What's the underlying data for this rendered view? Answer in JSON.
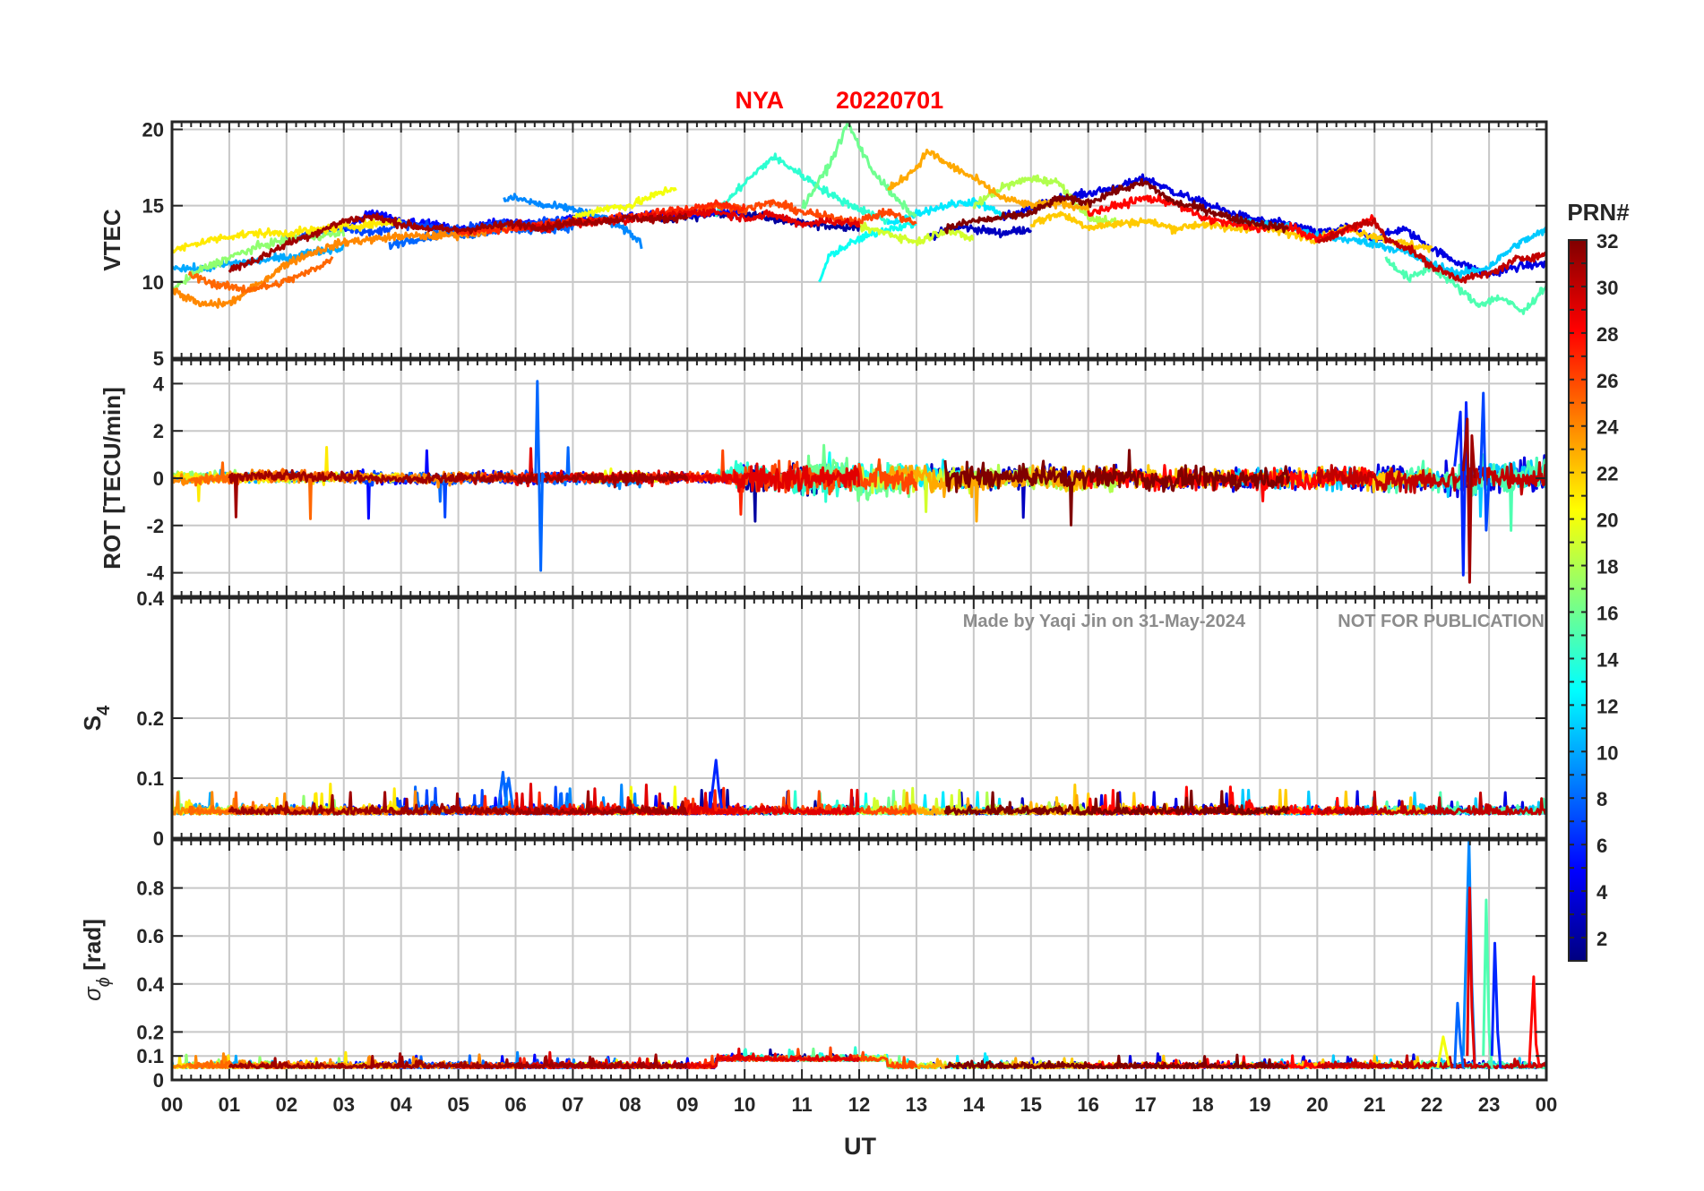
{
  "chart_data": {
    "type": "line",
    "title_station": "NYA",
    "title_date": "20220701",
    "xlabel": "UT",
    "xlim": [
      0,
      24
    ],
    "x_ticks": [
      "00",
      "01",
      "02",
      "03",
      "04",
      "05",
      "06",
      "07",
      "08",
      "09",
      "10",
      "11",
      "12",
      "13",
      "14",
      "15",
      "16",
      "17",
      "18",
      "19",
      "20",
      "21",
      "22",
      "23",
      "00"
    ],
    "watermark_author": "Made by Yaqi Jin on 31-May-2024",
    "watermark_notice": "NOT FOR PUBLICATION",
    "colorbar": {
      "title": "PRN#",
      "colormap": "jet",
      "range": [
        1,
        32
      ],
      "ticks": [
        "2",
        "4",
        "6",
        "8",
        "10",
        "12",
        "14",
        "16",
        "18",
        "20",
        "22",
        "24",
        "26",
        "28",
        "30",
        "32"
      ]
    },
    "panels": [
      {
        "id": "vtec",
        "ylabel": "VTEC",
        "ylim": [
          5,
          20.5
        ],
        "yticks": [
          5,
          10,
          15,
          20
        ],
        "ytick_labels": [
          "5",
          "10",
          "15",
          "20"
        ],
        "series_summary": "VTEC ~8-13 TECU at 00-03 UT, rising to ~13-15 by 06-09 UT, peaks near 18.5-20 around 10.5-12 UT, ~13-17 at 13-19 UT, falling to ~8-12 at 21-24 UT"
      },
      {
        "id": "rot",
        "ylabel": "ROT [TECU/min]",
        "ylim": [
          -5,
          5
        ],
        "yticks": [
          -4,
          -2,
          0,
          2,
          4
        ],
        "ytick_labels": [
          "-4",
          "-2",
          "0",
          "2",
          "4"
        ],
        "series_summary": "ROT mostly within ±1 TECU/min; spike to +4.1/-3.9 at ~06.4 UT; bursts to ±2 at 10-14 UT; spikes to +3.6/-4.4 at ~22.6 UT"
      },
      {
        "id": "s4",
        "ylabel": "S4",
        "ylabel_main": "S",
        "ylabel_sub": "4",
        "ylim": [
          0,
          0.4
        ],
        "yticks": [
          0,
          0.1,
          0.2,
          0.4
        ],
        "ytick_labels": [
          "0",
          "0.1",
          "0.2",
          "0.4"
        ],
        "series_summary": "S4 mostly 0.02-0.09; small peaks ~0.13 at ~9.5 UT and ~0.11 at ~5.8 UT"
      },
      {
        "id": "sigphi",
        "ylabel": "sigma_phi [rad]",
        "ylabel_sigma": "σ",
        "ylabel_sub": "ϕ",
        "ylabel_unit": "[rad]",
        "ylim": [
          0,
          1
        ],
        "yticks": [
          0,
          0.1,
          0.2,
          0.4,
          0.6,
          0.8
        ],
        "ytick_labels": [
          "0",
          "0.1",
          "0.2",
          "0.4",
          "0.6",
          "0.8"
        ],
        "series_summary": "sigma_phi mostly 0.03-0.15; spikes to ~1.0, 0.8, 0.75, 0.57 at ~22.5-23 UT and ~0.43 at ~23.8 UT"
      }
    ],
    "anchors": [
      {
        "panel": "vtec",
        "series": [
          {
            "prn": 2,
            "x": [
              8.5,
              9,
              10,
              11,
              12
            ],
            "y": [
              14,
              14.3,
              14.5,
              13.8,
              13.6
            ]
          },
          {
            "prn": 3,
            "x": [
              13.2,
              13.8,
              14.5,
              15
            ],
            "y": [
              13,
              13.6,
              13.2,
              13.5
            ]
          },
          {
            "prn": 4,
            "x": [
              14.5,
              15,
              15.5,
              16,
              16.5,
              17,
              17.5,
              18,
              18.5,
              19,
              19.5,
              20,
              20.5,
              21,
              21.5,
              22,
              22.5,
              23,
              23.5,
              24
            ],
            "y": [
              14.2,
              14.8,
              15.5,
              15.8,
              16.2,
              16.8,
              15.9,
              15.2,
              14.5,
              14,
              13.8,
              13.2,
              13.6,
              12.8,
              13.5,
              12.2,
              11.2,
              10.5,
              11,
              11.2
            ]
          },
          {
            "prn": 5,
            "x": [
              3,
              3.5,
              4,
              4.5,
              5,
              5.5,
              6,
              6.5,
              7,
              7.5,
              8,
              8.5,
              9,
              9.5,
              10
            ],
            "y": [
              13.4,
              14.6,
              14,
              13.8,
              13.4,
              13.8,
              14,
              13.8,
              14.2,
              14.1,
              14.3,
              14.5,
              14.4,
              14.6,
              14.6
            ]
          },
          {
            "prn": 7,
            "x": [
              2,
              2.5,
              3,
              3.5,
              4,
              4.5,
              5,
              5.5,
              6,
              6.5,
              7
            ],
            "y": [
              12.8,
              13.2,
              13.6,
              13.2,
              13.8,
              13.6,
              13.4,
              13.8,
              13.8,
              14,
              14
            ]
          },
          {
            "prn": 8,
            "x": [
              3.8,
              4.2,
              4.8,
              5.2,
              5.8,
              6.2,
              7
            ],
            "y": [
              12.4,
              12.8,
              13.2,
              13.1,
              13.5,
              13.4,
              13.6
            ]
          },
          {
            "prn": 9,
            "x": [
              5.8,
              6,
              6.5,
              7,
              7.5,
              8,
              8.2
            ],
            "y": [
              15.4,
              15.5,
              15,
              14.8,
              14.2,
              13.2,
              12.5
            ]
          },
          {
            "prn": 10,
            "x": [
              0,
              0.5,
              1,
              1.5,
              2,
              2.5,
              3
            ],
            "y": [
              11,
              10.8,
              11.2,
              11.4,
              11.6,
              12,
              12.2
            ]
          },
          {
            "prn": 11,
            "x": [
              18.5,
              19,
              19.5,
              20,
              20.5,
              21,
              21.5,
              22,
              22.5,
              23,
              23.5,
              24
            ],
            "y": [
              14,
              13.8,
              13.6,
              13,
              12.8,
              12.5,
              12,
              11.2,
              10.5,
              11,
              12.5,
              13.4
            ]
          },
          {
            "prn": 12,
            "x": [
              12.5,
              13,
              13.5,
              14,
              14.5
            ],
            "y": [
              13.8,
              14.5,
              15,
              15.3,
              14.4
            ]
          },
          {
            "prn": 13,
            "x": [
              11.3,
              11.5,
              12,
              12.5,
              13
            ],
            "y": [
              10,
              11.8,
              12.8,
              13.5,
              13.8
            ]
          },
          {
            "prn": 14,
            "x": [
              9.5,
              10,
              10.5,
              10.8,
              11.2,
              11.6,
              12,
              12.5
            ],
            "y": [
              14.5,
              16.5,
              18.2,
              17.5,
              16.5,
              15.5,
              14.8,
              14
            ]
          },
          {
            "prn": 15,
            "x": [
              21.2,
              21.6,
              22,
              22.4,
              22.8,
              23.2,
              23.6,
              24
            ],
            "y": [
              11.5,
              10.2,
              11,
              9.8,
              8.5,
              9,
              8,
              9.8
            ]
          },
          {
            "prn": 16,
            "x": [
              11,
              11.5,
              11.8,
              12.2,
              12.6,
              13
            ],
            "y": [
              14.8,
              17.8,
              20.4,
              17.5,
              15.6,
              14.2
            ]
          },
          {
            "prn": 17,
            "x": [
              0,
              0.5,
              1,
              1.5,
              2,
              2.5,
              3
            ],
            "y": [
              9.5,
              10.8,
              11.6,
              12.3,
              12.8,
              13,
              13.2
            ]
          },
          {
            "prn": 18,
            "x": [
              14,
              14.5,
              15,
              15.5,
              16,
              16.5
            ],
            "y": [
              15,
              16.2,
              16.8,
              16.5,
              14.2,
              13.8
            ]
          },
          {
            "prn": 19,
            "x": [
              12,
              12.5,
              13,
              13.5,
              14
            ],
            "y": [
              13.6,
              13.2,
              12.6,
              13.4,
              12.8
            ]
          },
          {
            "prn": 20,
            "x": [
              7,
              7.5,
              8,
              8.5,
              8.8
            ],
            "y": [
              14.2,
              14.8,
              15,
              15.8,
              16.2
            ]
          },
          {
            "prn": 21,
            "x": [
              0,
              0.5,
              1,
              1.5,
              2,
              2.5,
              3,
              3.5,
              4
            ],
            "y": [
              12,
              12.6,
              13,
              13.2,
              13.2,
              13.4,
              13.6,
              13.8,
              14
            ]
          },
          {
            "prn": 22,
            "x": [
              15,
              15.5,
              16,
              16.5,
              17,
              17.5,
              18,
              18.5,
              19,
              19.5,
              20,
              20.5,
              21,
              21.5,
              22
            ],
            "y": [
              13.8,
              14.5,
              13.6,
              13.8,
              14,
              13.5,
              13.8,
              13.5,
              13.6,
              13.2,
              12.8,
              13.5,
              13,
              12.5,
              12.2
            ]
          },
          {
            "prn": 23,
            "x": [
              12.5,
              13,
              13.2,
              13.5,
              14,
              14.5,
              15,
              15.5,
              16
            ],
            "y": [
              16,
              17.5,
              18.6,
              17.8,
              16.8,
              15.5,
              15,
              15.2,
              14.8
            ]
          },
          {
            "prn": 24,
            "x": [
              0,
              0.5,
              1,
              1.5,
              2,
              2.5,
              3,
              3.5,
              4,
              4.5,
              5,
              5.5,
              6
            ],
            "y": [
              9.5,
              8.5,
              8.6,
              9.8,
              11.2,
              12,
              12.6,
              12.8,
              13,
              13,
              13.1,
              13.3,
              13.6
            ]
          },
          {
            "prn": 25,
            "x": [
              0.3,
              0.8,
              1.3,
              1.8,
              2.3,
              2.8
            ],
            "y": [
              10.5,
              9.8,
              9.5,
              9.8,
              10.5,
              11.5
            ]
          },
          {
            "prn": 26,
            "x": [
              9,
              9.5,
              10,
              10.5,
              11,
              11.5,
              12,
              12.5,
              13
            ],
            "y": [
              14.5,
              15,
              14.8,
              15.2,
              14.6,
              14.2,
              14,
              14.6,
              13.8
            ]
          },
          {
            "prn": 27,
            "x": [
              5,
              5.5,
              6,
              6.5,
              7,
              7.5,
              8,
              8.5,
              9,
              9.5,
              10
            ],
            "y": [
              13.2,
              13.4,
              13.5,
              13.8,
              14,
              14.1,
              14.3,
              14.5,
              14.8,
              15.1,
              14.8
            ]
          },
          {
            "prn": 28,
            "x": [
              16,
              16.5,
              17,
              17.5,
              18,
              18.5,
              19,
              19.5,
              20,
              20.5,
              21
            ],
            "y": [
              14.5,
              15,
              15.5,
              15.2,
              14.2,
              13.8,
              13.5,
              13.6,
              12.8,
              13.4,
              14.2
            ]
          },
          {
            "prn": 29,
            "x": [
              6,
              6.5,
              7,
              7.5,
              8,
              8.5,
              9,
              9.5,
              10,
              10.5,
              11,
              11.5,
              12
            ],
            "y": [
              13.8,
              13.5,
              13.8,
              14,
              14.1,
              14.3,
              14.5,
              14.6,
              14.2,
              14.4,
              13.8,
              14,
              13.8
            ]
          },
          {
            "prn": 30,
            "x": [
              20,
              20.5,
              21,
              21.2,
              21.6,
              22,
              22.5,
              23,
              23.5,
              24
            ],
            "y": [
              12.5,
              13.5,
              14,
              12.8,
              12.2,
              11,
              10.2,
              10.5,
              11.5,
              11.8
            ]
          },
          {
            "prn": 31,
            "x": [
              1,
              1.5,
              2,
              2.5,
              3,
              3.5,
              4,
              4.5,
              5,
              5.5,
              6,
              6.5,
              7,
              7.5,
              8,
              8.5,
              9
            ],
            "y": [
              10.8,
              11.5,
              12.5,
              13.2,
              14,
              14.3,
              13.8,
              13.5,
              13.4,
              13.6,
              13.8,
              13.6,
              13.9,
              14,
              14.2,
              14.1,
              14.3
            ]
          },
          {
            "prn": 32,
            "x": [
              13.5,
              14,
              14.5,
              15,
              15.5,
              16,
              16.5,
              17,
              17.5,
              18,
              18.5,
              19,
              19.5
            ],
            "y": [
              13.5,
              14,
              14.2,
              14.5,
              15.5,
              15.2,
              16,
              16.5,
              15.2,
              14.8,
              14.2,
              13.8,
              13.5
            ]
          }
        ]
      }
    ]
  }
}
